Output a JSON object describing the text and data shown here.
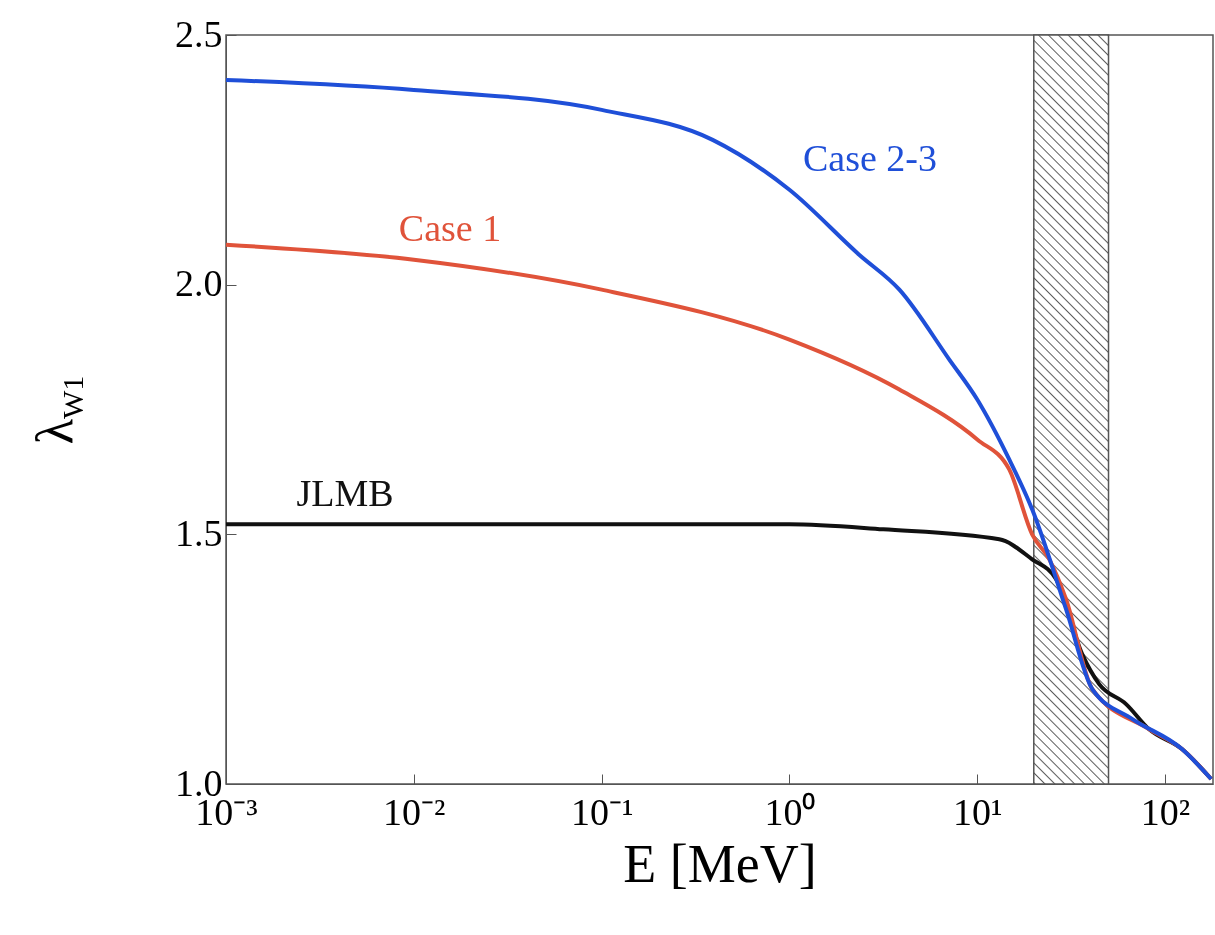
{
  "chart_data": {
    "type": "line",
    "xlabel": "E [MeV]",
    "ylabel": "λ$_{W1}$",
    "log": "x",
    "xlim": [
      0.001,
      180
    ],
    "ylim": [
      1.0,
      2.5
    ],
    "xticks": [
      {
        "value": 0.001,
        "label": "10⁻³"
      },
      {
        "value": 0.01,
        "label": "10⁻²"
      },
      {
        "value": 0.1,
        "label": "10⁻¹"
      },
      {
        "value": 1,
        "label": "10⁰"
      },
      {
        "value": 10,
        "label": "10¹"
      },
      {
        "value": 100,
        "label": "10²"
      }
    ],
    "yticks": [
      {
        "value": 1.0,
        "label": "1.0"
      },
      {
        "value": 1.5,
        "label": "1.5"
      },
      {
        "value": 2.0,
        "label": "2.0"
      },
      {
        "value": 2.5,
        "label": "2.5"
      }
    ],
    "grid": false,
    "marker": "none",
    "line_style": "solid",
    "bands": [
      {
        "axis": "x",
        "from": 20,
        "to": 50
      }
    ],
    "series": [
      {
        "name": "JLMB",
        "color": "#111111",
        "x": [
          0.001,
          1,
          3.16,
          13.1,
          19.6,
          26.3,
          36.2,
          44.6,
          62,
          82,
          123,
          176
        ],
        "values": [
          1.52,
          1.52,
          1.51,
          1.49,
          1.45,
          1.41,
          1.26,
          1.2,
          1.16,
          1.11,
          1.07,
          1.01
        ]
      },
      {
        "name": "Case 1",
        "color": "#e0533a",
        "x": [
          0.001,
          0.01,
          0.1,
          1,
          3.85,
          10,
          14.8,
          19.6,
          24.2,
          29.7,
          41,
          82,
          123,
          176
        ],
        "values": [
          2.08,
          2.05,
          1.99,
          1.89,
          1.79,
          1.69,
          1.63,
          1.5,
          1.45,
          1.37,
          1.19,
          1.11,
          1.07,
          1.01
        ]
      },
      {
        "name": "Case 2-3",
        "color": "#1f4fd8",
        "x": [
          0.001,
          0.01,
          0.1,
          0.39,
          1,
          2.35,
          3.85,
          7.1,
          10,
          14.8,
          19.6,
          29.7,
          41,
          67,
          123,
          176
        ],
        "values": [
          2.41,
          2.39,
          2.35,
          2.29,
          2.19,
          2.06,
          1.99,
          1.85,
          1.77,
          1.65,
          1.55,
          1.35,
          1.19,
          1.13,
          1.07,
          1.01
        ]
      }
    ]
  }
}
